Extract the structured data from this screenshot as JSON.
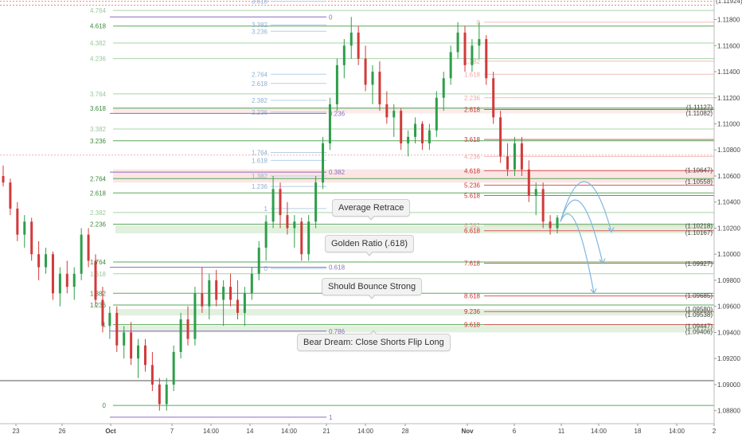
{
  "chart_data": {
    "type": "candlestick",
    "y_axis": {
      "ticks": [
        "1.11800",
        "1.11600",
        "1.11400",
        "1.11200",
        "1.11000",
        "1.10800",
        "1.10600",
        "1.10400",
        "1.10200",
        "1.10000",
        "1.09800",
        "1.09600",
        "1.09400",
        "1.09200",
        "1.09000",
        "1.08800"
      ],
      "tick_values": [
        1.118,
        1.116,
        1.114,
        1.112,
        1.11,
        1.108,
        1.106,
        1.104,
        1.102,
        1.1,
        1.098,
        1.096,
        1.094,
        1.092,
        1.09,
        1.088
      ],
      "range": [
        1.087,
        1.1195
      ],
      "top_label": "(1.11924)"
    },
    "x_axis": {
      "ticks": [
        "23",
        "26",
        "Oct",
        "7",
        "14:00",
        "14",
        "14:00",
        "21",
        "14:00",
        "28",
        "Nov",
        "6",
        "11",
        "14:00",
        "18",
        "14:00",
        "2"
      ],
      "bold": [
        "Oct",
        "Nov"
      ]
    },
    "price_labels": [
      {
        "text": "(1.11127)",
        "value": 1.11127,
        "color": "#cc3333"
      },
      {
        "text": "(1.11082)",
        "value": 1.11082,
        "color": "#cc3333"
      },
      {
        "text": "(1.10647)",
        "value": 1.10647,
        "color": "#cc3333"
      },
      {
        "text": "(1.10558)",
        "value": 1.10558,
        "color": "#cc3333"
      },
      {
        "text": "(1.10218)",
        "value": 1.10218,
        "color": "#339933"
      },
      {
        "text": "(1.10167)",
        "value": 1.10167,
        "color": "#339933"
      },
      {
        "text": "(1.09927)",
        "value": 1.09927,
        "color": "#339933"
      },
      {
        "text": "(1.09685)",
        "value": 1.09685,
        "color": "#339933"
      },
      {
        "text": "(1.09580)",
        "value": 1.0958,
        "color": "#339933"
      },
      {
        "text": "(1.09538)",
        "value": 1.09538,
        "color": "#339933"
      },
      {
        "text": "(1.09447)",
        "value": 1.09447,
        "color": "#339933"
      },
      {
        "text": "(1.09406)",
        "value": 1.09406,
        "color": "#339933"
      }
    ],
    "fib_green_left": [
      {
        "label": "4.764",
        "value": 1.1187
      },
      {
        "label": "4.618",
        "value": 1.1175
      },
      {
        "label": "4.382",
        "value": 1.1162
      },
      {
        "label": "4.236",
        "value": 1.115
      },
      {
        "label": "3.764",
        "value": 1.1123
      },
      {
        "label": "3.618",
        "value": 1.1112
      },
      {
        "label": "3.382",
        "value": 1.1096
      },
      {
        "label": "3.236",
        "value": 1.1087
      },
      {
        "label": "2.764",
        "value": 1.1058
      },
      {
        "label": "2.618",
        "value": 1.1047
      },
      {
        "label": "2.382",
        "value": 1.1032
      },
      {
        "label": "2.236",
        "value": 1.1023
      },
      {
        "label": "1.764",
        "value": 1.0994
      },
      {
        "label": "1.618",
        "value": 1.0985
      },
      {
        "label": "1.382",
        "value": 1.097
      },
      {
        "label": "1.236",
        "value": 1.0961
      },
      {
        "label": "1",
        "value": 1.0946
      },
      {
        "label": "0",
        "value": 1.0884
      }
    ],
    "fib_blue_mid": [
      {
        "label": "3.618",
        "value": 1.1194
      },
      {
        "label": "3.382",
        "value": 1.1176
      },
      {
        "label": "3.236",
        "value": 1.1171
      },
      {
        "label": "2.764",
        "value": 1.1138
      },
      {
        "label": "2.618",
        "value": 1.1131
      },
      {
        "label": "2.382",
        "value": 1.1118
      },
      {
        "label": "2.236",
        "value": 1.1109
      },
      {
        "label": "1.764",
        "value": 1.1078
      },
      {
        "label": "1.618",
        "value": 1.1072
      },
      {
        "label": "1.382",
        "value": 1.106
      },
      {
        "label": "1.236",
        "value": 1.1052
      },
      {
        "label": "1",
        "value": 1.1035
      },
      {
        "label": "0",
        "value": 1.0989
      }
    ],
    "fib_purple_mid": [
      {
        "label": "0",
        "value": 1.1182
      },
      {
        "label": "0.236",
        "value": 1.1108
      },
      {
        "label": "0.382",
        "value": 1.1063
      },
      {
        "label": "0.618",
        "value": 1.099
      },
      {
        "label": "0.786",
        "value": 1.0941
      },
      {
        "label": "1",
        "value": 1.0875
      }
    ],
    "fib_red_right": [
      {
        "label": "0",
        "value": 1.1178
      },
      {
        "label": "1.382",
        "value": 1.1148
      },
      {
        "label": "1.618",
        "value": 1.1138
      },
      {
        "label": "2.236",
        "value": 1.112
      },
      {
        "label": "2.618",
        "value": 1.1111
      },
      {
        "label": "3.618",
        "value": 1.1088
      },
      {
        "label": "4.236",
        "value": 1.1075
      },
      {
        "label": "4.618",
        "value": 1.1064
      },
      {
        "label": "5.236",
        "value": 1.1053
      },
      {
        "label": "5.618",
        "value": 1.1045
      },
      {
        "label": "6.382",
        "value": 1.1022
      },
      {
        "label": "6.618",
        "value": 1.1018
      },
      {
        "label": "7.618",
        "value": 1.0993
      },
      {
        "label": "8.618",
        "value": 1.0968
      },
      {
        "label": "9.236",
        "value": 1.0956
      },
      {
        "label": "9.618",
        "value": 1.0946
      }
    ],
    "annotations": [
      {
        "text": "Average Retrace",
        "pointer": "down"
      },
      {
        "text": "Golden Ratio (.618)",
        "pointer": "down"
      },
      {
        "text": "Should Bounce Strong",
        "pointer": "down"
      },
      {
        "text": "Bear Dream: Close Shorts Flip Long",
        "pointer": "up"
      }
    ],
    "candles_ohlc": [
      [
        1.106,
        1.1068,
        1.1052,
        1.1055
      ],
      [
        1.1055,
        1.1058,
        1.103,
        1.1035
      ],
      [
        1.1035,
        1.104,
        1.101,
        1.1015
      ],
      [
        1.1015,
        1.103,
        1.1005,
        1.1025
      ],
      [
        1.1025,
        1.1028,
        1.0995,
        1.1
      ],
      [
        1.1,
        1.101,
        1.098,
        1.099
      ],
      [
        1.099,
        1.1005,
        1.0985,
        1.1
      ],
      [
        1.1,
        1.1002,
        1.0965,
        1.097
      ],
      [
        1.097,
        1.099,
        1.096,
        1.0985
      ],
      [
        1.0985,
        1.0995,
        1.097,
        1.0975
      ],
      [
        1.0975,
        1.099,
        1.0965,
        1.0985
      ],
      [
        1.0985,
        1.102,
        1.098,
        1.1015
      ],
      [
        1.1015,
        1.102,
        1.099,
        1.0995
      ],
      [
        1.0995,
        1.1,
        1.096,
        1.0965
      ],
      [
        1.0965,
        1.0975,
        1.094,
        1.0945
      ],
      [
        1.0945,
        1.096,
        1.0935,
        1.0955
      ],
      [
        1.0955,
        1.096,
        1.0925,
        1.093
      ],
      [
        1.093,
        1.0945,
        1.092,
        1.094
      ],
      [
        1.094,
        1.0948,
        1.0915,
        1.092
      ],
      [
        1.092,
        1.0935,
        1.0905,
        1.093
      ],
      [
        1.093,
        1.0935,
        1.091,
        1.0915
      ],
      [
        1.0915,
        1.0925,
        1.0895,
        1.09
      ],
      [
        1.09,
        1.0905,
        1.088,
        1.0885
      ],
      [
        1.0885,
        1.0905,
        1.088,
        1.09
      ],
      [
        1.09,
        1.093,
        1.0895,
        1.0925
      ],
      [
        1.0925,
        1.0955,
        1.092,
        1.095
      ],
      [
        1.095,
        1.096,
        1.093,
        1.0935
      ],
      [
        1.0935,
        1.0975,
        1.093,
        1.097
      ],
      [
        1.097,
        1.099,
        1.0955,
        1.096
      ],
      [
        1.096,
        1.0985,
        1.095,
        1.098
      ],
      [
        1.098,
        1.0988,
        1.096,
        1.0965
      ],
      [
        1.0965,
        1.098,
        1.0945,
        1.0975
      ],
      [
        1.0975,
        1.0985,
        1.096,
        1.0965
      ],
      [
        1.0965,
        1.098,
        1.095,
        1.0955
      ],
      [
        1.0955,
        1.0975,
        1.0945,
        1.097
      ],
      [
        1.097,
        1.099,
        1.0965,
        1.0985
      ],
      [
        1.0985,
        1.101,
        1.098,
        1.1005
      ],
      [
        1.1005,
        1.103,
        1.0995,
        1.1025
      ],
      [
        1.1025,
        1.106,
        1.102,
        1.105
      ],
      [
        1.105,
        1.1055,
        1.102,
        1.103
      ],
      [
        1.103,
        1.104,
        1.1015,
        1.102
      ],
      [
        1.102,
        1.103,
        1.1005,
        1.1025
      ],
      [
        1.1025,
        1.1028,
        1.0995,
        1.1
      ],
      [
        1.1,
        1.103,
        1.0995,
        1.1025
      ],
      [
        1.1025,
        1.106,
        1.102,
        1.1055
      ],
      [
        1.1055,
        1.109,
        1.105,
        1.1085
      ],
      [
        1.1085,
        1.112,
        1.108,
        1.1115
      ],
      [
        1.1115,
        1.115,
        1.111,
        1.1145
      ],
      [
        1.1145,
        1.1165,
        1.1135,
        1.116
      ],
      [
        1.116,
        1.1182,
        1.115,
        1.117
      ],
      [
        1.117,
        1.1175,
        1.1145,
        1.115
      ],
      [
        1.115,
        1.116,
        1.1125,
        1.113
      ],
      [
        1.113,
        1.1145,
        1.1115,
        1.114
      ],
      [
        1.114,
        1.1148,
        1.111,
        1.1115
      ],
      [
        1.1115,
        1.1125,
        1.11,
        1.1105
      ],
      [
        1.1105,
        1.1115,
        1.109,
        1.111
      ],
      [
        1.111,
        1.1112,
        1.108,
        1.1085
      ],
      [
        1.1085,
        1.1095,
        1.1075,
        1.109
      ],
      [
        1.109,
        1.1105,
        1.1085,
        1.11
      ],
      [
        1.11,
        1.1102,
        1.108,
        1.1085
      ],
      [
        1.1085,
        1.11,
        1.108,
        1.1095
      ],
      [
        1.1095,
        1.1125,
        1.109,
        1.112
      ],
      [
        1.112,
        1.114,
        1.111,
        1.1135
      ],
      [
        1.1135,
        1.116,
        1.113,
        1.1155
      ],
      [
        1.1155,
        1.1178,
        1.115,
        1.117
      ],
      [
        1.117,
        1.1175,
        1.114,
        1.1145
      ],
      [
        1.1145,
        1.1165,
        1.114,
        1.116
      ],
      [
        1.116,
        1.1178,
        1.115,
        1.1165
      ],
      [
        1.1165,
        1.1168,
        1.113,
        1.1135
      ],
      [
        1.1135,
        1.114,
        1.11,
        1.1105
      ],
      [
        1.1105,
        1.111,
        1.107,
        1.1075
      ],
      [
        1.1075,
        1.1085,
        1.106,
        1.1065
      ],
      [
        1.1065,
        1.109,
        1.106,
        1.1085
      ],
      [
        1.1085,
        1.109,
        1.106,
        1.1065
      ],
      [
        1.1065,
        1.1072,
        1.104,
        1.1045
      ],
      [
        1.1045,
        1.1055,
        1.103,
        1.105
      ],
      [
        1.105,
        1.1055,
        1.102,
        1.1025
      ],
      [
        1.1025,
        1.103,
        1.1015,
        1.102
      ],
      [
        1.102,
        1.103,
        1.1016,
        1.1028
      ]
    ]
  }
}
